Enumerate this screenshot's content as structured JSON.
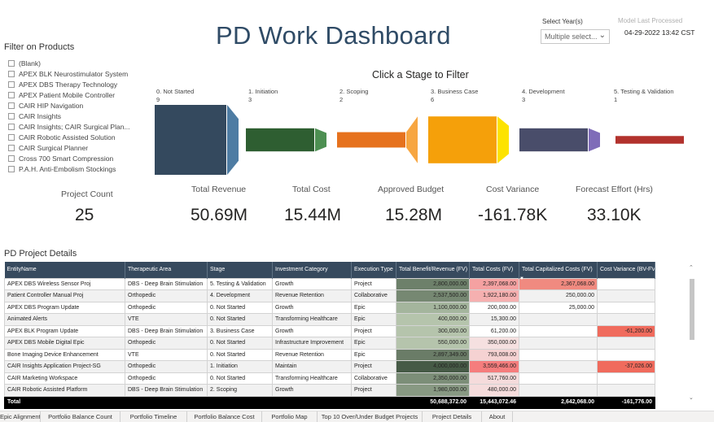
{
  "header": {
    "title": "PD Work Dashboard",
    "year_label": "Select Year(s)",
    "year_value": "Multiple select...",
    "model_label": "Model Last Processed",
    "model_value": "04-29-2022 13:42 CST"
  },
  "filter": {
    "title": "Filter on Products",
    "items": [
      "(Blank)",
      "APEX BLK Neurostimulator System",
      "APEX DBS Therapy Technology",
      "APEX Patient Mobile Controller",
      "CAIR HIP Navigation",
      "CAIR Insights",
      "CAIR Insights; CAIR Surgical Plan...",
      "CAIR Robotic Assisted Solution",
      "CAIR Surgical Planner",
      "Cross 700 Smart Compression",
      "P.A.H. Anti-Embolism Stockings"
    ]
  },
  "stages": {
    "title": "Click a Stage to Filter",
    "items": [
      {
        "name": "0. Not Started",
        "count": "9",
        "color": "#34495e",
        "level": 1.0
      },
      {
        "name": "1. Initiation",
        "count": "3",
        "color": "#2e5e31",
        "level": 0.33
      },
      {
        "name": "2. Scoping",
        "count": "2",
        "color": "#e6721e",
        "level": 0.22
      },
      {
        "name": "3. Business Case",
        "count": "6",
        "color": "#f5a00a",
        "level": 0.67
      },
      {
        "name": "4. Development",
        "count": "3",
        "color": "#494d6a",
        "level": 0.33
      },
      {
        "name": "5. Testing & Validation",
        "count": "1",
        "color": "#b2322d",
        "level": 0.11
      }
    ],
    "connector_colors": [
      "#4e7ca3",
      "#4d8f52",
      "#f7a641",
      "#fde300",
      "#7f6cb8"
    ]
  },
  "kpis": [
    {
      "label": "Project Count",
      "value": "25"
    },
    {
      "label": "Total Revenue",
      "value": "50.69M"
    },
    {
      "label": "Total Cost",
      "value": "15.44M"
    },
    {
      "label": "Approved Budget",
      "value": "15.28M"
    },
    {
      "label": "Cost Variance",
      "value": "-161.78K"
    },
    {
      "label": "Forecast Effort (Hrs)",
      "value": "33.10K"
    }
  ],
  "details": {
    "title": "PD Project Details",
    "columns": [
      "EntityName",
      "Therapeutic Area",
      "Stage",
      "Investment Category",
      "Execution Type",
      "Total Benefit/Revenue (FV)",
      "Total Costs (FV)",
      "Total Capitalized Costs (FV)",
      "Cost Variance (BV-FV)"
    ],
    "rows": [
      [
        "APEX DBS Wireless Sensor Proj",
        "DBS - Deep Brain Stimulation",
        "5. Testing & Validation",
        "Growth",
        "Project",
        "2,800,000.00",
        "2,397,068.00",
        "2,367,068.00",
        ""
      ],
      [
        "Patient Controller Manual Proj",
        "Orthopedic",
        "4. Development",
        "Revenue Retention",
        "Collaborative",
        "2,537,500.00",
        "1,922,180.00",
        "250,000.00",
        ""
      ],
      [
        "APEX DBS Program Update",
        "Orthopedic",
        "0. Not Started",
        "Growth",
        "Epic",
        "1,100,000.00",
        "200,000.00",
        "25,000.00",
        ""
      ],
      [
        "Animated Alerts",
        "VTE",
        "0. Not Started",
        "Transforming Healthcare",
        "Epic",
        "400,000.00",
        "15,300.00",
        "",
        ""
      ],
      [
        "APEX BLK Program Update",
        "DBS - Deep Brain Stimulation",
        "3. Business Case",
        "Growth",
        "Project",
        "300,000.00",
        "61,200.00",
        "",
        "-61,200.00"
      ],
      [
        "APEX DBS Mobile Digital Epic",
        "Orthopedic",
        "0. Not Started",
        "Infrastructure Improvement",
        "Epic",
        "550,000.00",
        "350,000.00",
        "",
        ""
      ],
      [
        "Bone Imaging Device Enhancement",
        "VTE",
        "0. Not Started",
        "Revenue Retention",
        "Epic",
        "2,897,349.00",
        "793,008.00",
        "",
        ""
      ],
      [
        "CAIR Insights Application Project-SG",
        "Orthopedic",
        "1. Initiation",
        "Maintain",
        "Project",
        "4,000,000.00",
        "3,559,466.00",
        "",
        "-37,026.00"
      ],
      [
        "CAIR Marketing Workspace",
        "Orthopedic",
        "0. Not Started",
        "Transforming Healthcare",
        "Collaborative",
        "2,350,000.00",
        "517,760.00",
        "",
        ""
      ],
      [
        "CAIR Robotic Assisted Platform",
        "DBS - Deep Brain Stimulation",
        "2. Scoping",
        "Growth",
        "Project",
        "1,980,000.00",
        "480,000.00",
        "",
        ""
      ]
    ],
    "total": [
      "Total",
      "",
      "",
      "",
      "",
      "50,688,372.00",
      "15,443,072.46",
      "2,642,068.00",
      "-161,776.00"
    ]
  },
  "tabs": [
    "Epic Alignment",
    "Portfolio Balance Count",
    "Portfolio Timeline",
    "Portfolio Balance Cost",
    "Portfolio Map",
    "Top 10 Over/Under Budget Projects",
    "Project Details",
    "About"
  ]
}
